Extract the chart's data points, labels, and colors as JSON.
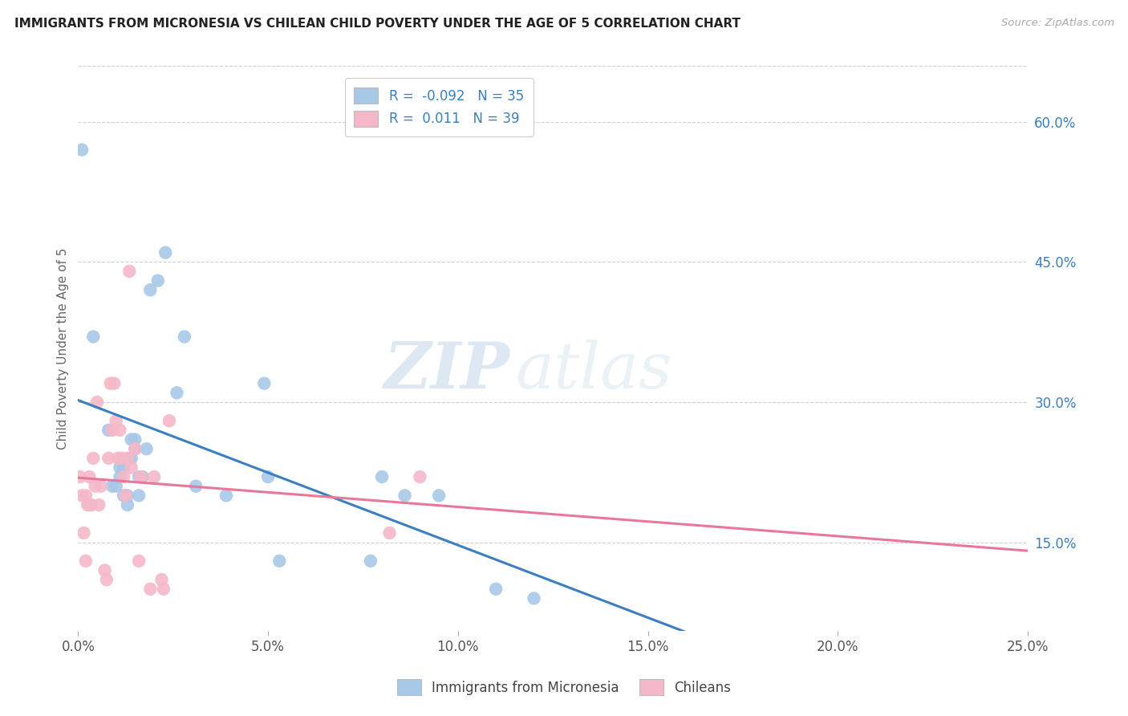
{
  "title": "IMMIGRANTS FROM MICRONESIA VS CHILEAN CHILD POVERTY UNDER THE AGE OF 5 CORRELATION CHART",
  "source": "Source: ZipAtlas.com",
  "ylabel": "Child Poverty Under the Age of 5",
  "y_ticks": [
    0.15,
    0.3,
    0.45,
    0.6
  ],
  "y_tick_labels": [
    "15.0%",
    "30.0%",
    "45.0%",
    "60.0%"
  ],
  "x_range": [
    0.0,
    0.25
  ],
  "y_range": [
    0.055,
    0.66
  ],
  "blue_label": "Immigrants from Micronesia",
  "pink_label": "Chileans",
  "blue_R": -0.092,
  "blue_N": 35,
  "pink_R": 0.011,
  "pink_N": 39,
  "blue_color": "#a8c8e8",
  "pink_color": "#f5b8c8",
  "blue_line_color": "#3a7fc1",
  "pink_line_color": "#e8789a",
  "background_color": "#ffffff",
  "watermark_part1": "ZIP",
  "watermark_part2": "atlas",
  "grid_color": "#d0d0d0",
  "blue_points_x": [
    0.001,
    0.004,
    0.008,
    0.009,
    0.01,
    0.011,
    0.011,
    0.012,
    0.012,
    0.013,
    0.013,
    0.014,
    0.014,
    0.015,
    0.015,
    0.016,
    0.016,
    0.017,
    0.018,
    0.019,
    0.021,
    0.023,
    0.026,
    0.028,
    0.031,
    0.039,
    0.049,
    0.05,
    0.053,
    0.077,
    0.08,
    0.086,
    0.095,
    0.11,
    0.12
  ],
  "blue_points_y": [
    0.57,
    0.37,
    0.27,
    0.21,
    0.21,
    0.23,
    0.22,
    0.23,
    0.2,
    0.2,
    0.19,
    0.24,
    0.26,
    0.26,
    0.25,
    0.22,
    0.2,
    0.22,
    0.25,
    0.42,
    0.43,
    0.46,
    0.31,
    0.37,
    0.21,
    0.2,
    0.32,
    0.22,
    0.13,
    0.13,
    0.22,
    0.2,
    0.2,
    0.1,
    0.09
  ],
  "pink_points_x": [
    0.0005,
    0.001,
    0.0015,
    0.002,
    0.002,
    0.0025,
    0.003,
    0.003,
    0.0035,
    0.004,
    0.0045,
    0.005,
    0.0055,
    0.006,
    0.007,
    0.0075,
    0.008,
    0.0085,
    0.009,
    0.0095,
    0.01,
    0.0105,
    0.011,
    0.0115,
    0.012,
    0.0125,
    0.013,
    0.0135,
    0.014,
    0.015,
    0.016,
    0.0165,
    0.019,
    0.02,
    0.022,
    0.0225,
    0.024,
    0.082,
    0.09
  ],
  "pink_points_y": [
    0.22,
    0.2,
    0.16,
    0.13,
    0.2,
    0.19,
    0.22,
    0.19,
    0.19,
    0.24,
    0.21,
    0.3,
    0.19,
    0.21,
    0.12,
    0.11,
    0.24,
    0.32,
    0.27,
    0.32,
    0.28,
    0.24,
    0.27,
    0.24,
    0.22,
    0.2,
    0.24,
    0.44,
    0.23,
    0.25,
    0.13,
    0.22,
    0.1,
    0.22,
    0.11,
    0.1,
    0.28,
    0.16,
    0.22
  ],
  "x_tick_positions": [
    0.0,
    0.05,
    0.1,
    0.15,
    0.2,
    0.25
  ],
  "x_tick_labels": [
    "0.0%",
    "5.0%",
    "10.0%",
    "15.0%",
    "20.0%",
    "25.0%"
  ]
}
